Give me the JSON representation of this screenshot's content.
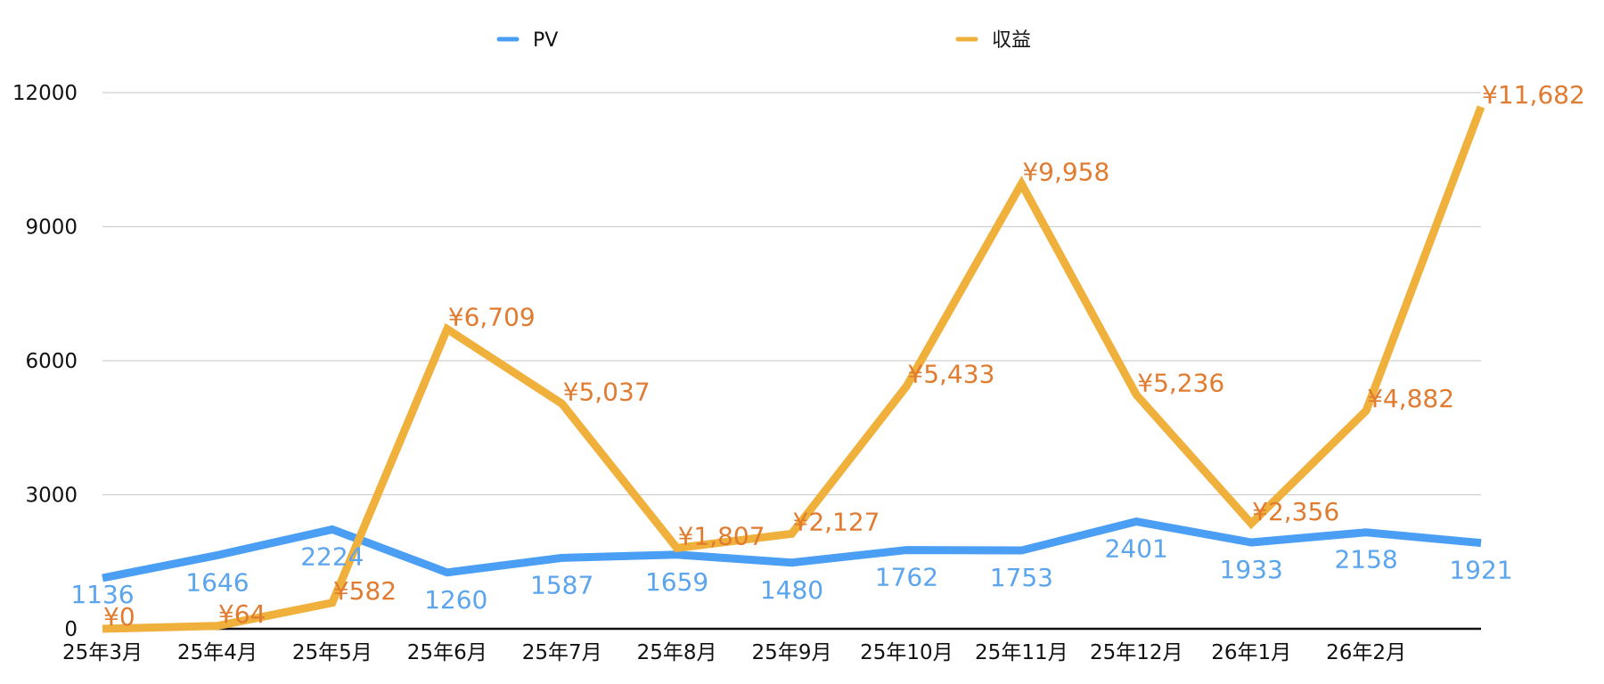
{
  "chart_data": {
    "type": "line",
    "title": "",
    "xlabel": "",
    "ylabel": "",
    "categories": [
      "25年3月",
      "25年4月",
      "25年5月",
      "25年6月",
      "25年7月",
      "25年8月",
      "25年9月",
      "25年10月",
      "25年11月",
      "25年12月",
      "26年1月",
      "26年2月",
      ""
    ],
    "ylim": [
      0,
      12000
    ],
    "yticks": [
      "0",
      "3000",
      "6000",
      "9000",
      "12000"
    ],
    "grid": true,
    "legend_position": "top",
    "series": [
      {
        "name": "PV",
        "color": "#4a9ff5",
        "label_color": "#5aa5ee",
        "values": [
          1136,
          1646,
          2224,
          1260,
          1587,
          1659,
          1480,
          1762,
          1753,
          2401,
          1933,
          2158,
          1921
        ],
        "labels": [
          "1136",
          "1646",
          "2224",
          "1260",
          "1587",
          "1659",
          "1480",
          "1762",
          "1753",
          "2401",
          "1933",
          "2158",
          "1921"
        ]
      },
      {
        "name": "収益",
        "color": "#f0b03c",
        "label_color": "#e07b30",
        "values": [
          0,
          64,
          582,
          6709,
          5037,
          1807,
          2127,
          5433,
          9958,
          5236,
          2356,
          4882,
          11682
        ],
        "labels": [
          "¥0",
          "¥64",
          "¥582",
          "¥6,709",
          "¥5,037",
          "¥1,807",
          "¥2,127",
          "¥5,433",
          "¥9,958",
          "¥5,236",
          "¥2,356",
          "¥4,882",
          "¥11,682"
        ]
      }
    ]
  }
}
